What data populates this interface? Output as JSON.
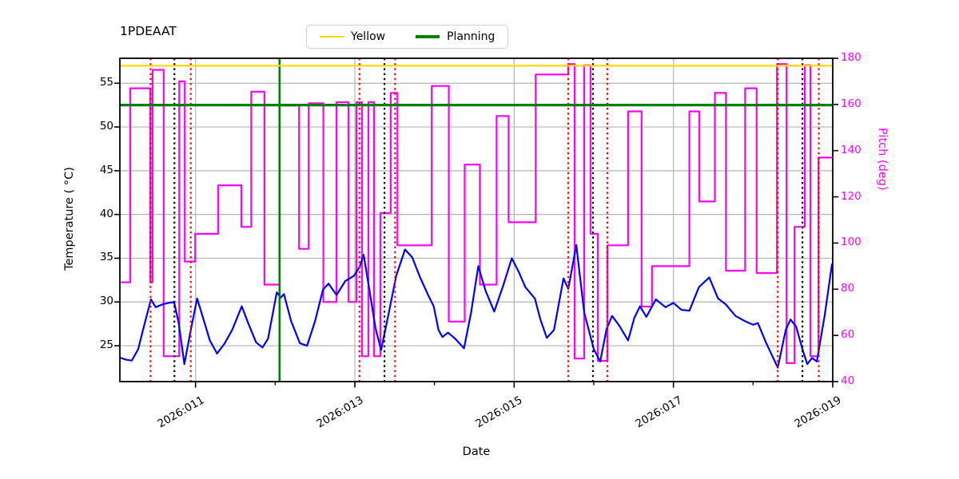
{
  "title": "1PDEAAT",
  "legend": {
    "items": [
      {
        "label": "Yellow",
        "color": "#FFD700",
        "thickness": 2.5
      },
      {
        "label": "Planning",
        "color": "#008000",
        "thickness": 3.5
      }
    ]
  },
  "axes": {
    "x": {
      "label": "Date",
      "range": [
        10.05,
        19.0
      ],
      "major_ticks": [
        {
          "day": 11,
          "label": "2026:011"
        },
        {
          "day": 13,
          "label": "2026:013"
        },
        {
          "day": 15,
          "label": "2026:015"
        },
        {
          "day": 17,
          "label": "2026:017"
        },
        {
          "day": 19,
          "label": "2026:019"
        }
      ],
      "minor_tick_days": [
        12,
        14,
        16,
        18
      ]
    },
    "y_left": {
      "label": "Temperature ( °C)",
      "range": [
        20.9,
        57.85
      ],
      "ticks": [
        25,
        30,
        35,
        40,
        45,
        50,
        55
      ],
      "color": "#000000"
    },
    "y_right": {
      "label": "Pitch (deg)",
      "range": [
        40,
        180
      ],
      "ticks": [
        40,
        60,
        80,
        100,
        120,
        140,
        160,
        180
      ],
      "color": "#FF00FF"
    }
  },
  "chart_data": {
    "type": "line",
    "title": "1PDEAAT",
    "xlabel": "Date",
    "x_unit": "2026 day-of-year",
    "grid": true,
    "legend_position": "top-center-outside",
    "series": [
      {
        "name": "1PDEAAT temperature",
        "axis": "left",
        "color": "#0000FF",
        "width": 2.2,
        "points": [
          [
            10.065,
            23.6
          ],
          [
            10.13,
            23.4
          ],
          [
            10.2,
            23.3
          ],
          [
            10.28,
            24.6
          ],
          [
            10.36,
            27.5
          ],
          [
            10.44,
            30.3
          ],
          [
            10.5,
            29.4
          ],
          [
            10.58,
            29.7
          ],
          [
            10.66,
            29.9
          ],
          [
            10.73,
            30.0
          ],
          [
            10.79,
            27.5
          ],
          [
            10.86,
            22.9
          ],
          [
            10.94,
            26.8
          ],
          [
            11.02,
            30.4
          ],
          [
            11.09,
            28.3
          ],
          [
            11.18,
            25.6
          ],
          [
            11.27,
            24.1
          ],
          [
            11.36,
            25.2
          ],
          [
            11.46,
            26.8
          ],
          [
            11.58,
            29.5
          ],
          [
            11.66,
            27.6
          ],
          [
            11.76,
            25.4
          ],
          [
            11.84,
            24.8
          ],
          [
            11.91,
            25.8
          ],
          [
            12.02,
            31.1
          ],
          [
            12.07,
            30.5
          ],
          [
            12.11,
            30.9
          ],
          [
            12.2,
            27.8
          ],
          [
            12.31,
            25.3
          ],
          [
            12.4,
            25.0
          ],
          [
            12.5,
            27.8
          ],
          [
            12.6,
            31.4
          ],
          [
            12.67,
            32.1
          ],
          [
            12.77,
            30.8
          ],
          [
            12.88,
            32.4
          ],
          [
            12.99,
            33.0
          ],
          [
            13.06,
            34.0
          ],
          [
            13.11,
            35.4
          ],
          [
            13.18,
            31.5
          ],
          [
            13.26,
            27.0
          ],
          [
            13.33,
            24.5
          ],
          [
            13.42,
            28.5
          ],
          [
            13.52,
            33.0
          ],
          [
            13.63,
            36.0
          ],
          [
            13.72,
            35.1
          ],
          [
            13.82,
            32.8
          ],
          [
            13.92,
            30.8
          ],
          [
            13.99,
            29.5
          ],
          [
            14.05,
            26.8
          ],
          [
            14.1,
            26.0
          ],
          [
            14.17,
            26.5
          ],
          [
            14.26,
            25.8
          ],
          [
            14.37,
            24.7
          ],
          [
            14.46,
            28.8
          ],
          [
            14.55,
            34.1
          ],
          [
            14.64,
            31.3
          ],
          [
            14.75,
            28.9
          ],
          [
            14.86,
            31.8
          ],
          [
            14.97,
            35.0
          ],
          [
            15.06,
            33.4
          ],
          [
            15.14,
            31.7
          ],
          [
            15.26,
            30.4
          ],
          [
            15.33,
            28.0
          ],
          [
            15.41,
            25.9
          ],
          [
            15.5,
            26.8
          ],
          [
            15.62,
            32.7
          ],
          [
            15.68,
            31.5
          ],
          [
            15.78,
            36.5
          ],
          [
            15.88,
            28.8
          ],
          [
            16.0,
            24.6
          ],
          [
            16.08,
            23.2
          ],
          [
            16.16,
            26.9
          ],
          [
            16.23,
            28.4
          ],
          [
            16.32,
            27.3
          ],
          [
            16.43,
            25.6
          ],
          [
            16.51,
            28.2
          ],
          [
            16.58,
            29.5
          ],
          [
            16.66,
            28.3
          ],
          [
            16.78,
            30.3
          ],
          [
            16.9,
            29.4
          ],
          [
            17.0,
            29.9
          ],
          [
            17.1,
            29.1
          ],
          [
            17.2,
            29.0
          ],
          [
            17.32,
            31.7
          ],
          [
            17.45,
            32.8
          ],
          [
            17.56,
            30.4
          ],
          [
            17.66,
            29.7
          ],
          [
            17.78,
            28.4
          ],
          [
            17.9,
            27.8
          ],
          [
            18.0,
            27.4
          ],
          [
            18.06,
            27.6
          ],
          [
            18.16,
            25.4
          ],
          [
            18.31,
            22.5
          ],
          [
            18.41,
            26.8
          ],
          [
            18.47,
            28.0
          ],
          [
            18.54,
            27.2
          ],
          [
            18.62,
            24.6
          ],
          [
            18.68,
            22.9
          ],
          [
            18.74,
            23.6
          ],
          [
            18.8,
            23.2
          ],
          [
            18.9,
            28.5
          ],
          [
            18.99,
            34.3
          ]
        ]
      },
      {
        "name": "Pitch",
        "axis": "right",
        "color": "#FF00FF",
        "width": 2.2,
        "style": "step",
        "segments": [
          [
            10.065,
            10.18,
            83
          ],
          [
            10.18,
            10.43,
            167
          ],
          [
            10.43,
            10.46,
            83
          ],
          [
            10.46,
            10.6,
            175
          ],
          [
            10.6,
            10.795,
            51
          ],
          [
            10.795,
            10.865,
            170
          ],
          [
            10.865,
            10.995,
            92
          ],
          [
            10.995,
            11.285,
            104
          ],
          [
            11.285,
            11.575,
            125
          ],
          [
            11.575,
            11.7,
            107
          ],
          [
            11.7,
            11.865,
            165.5
          ],
          [
            11.865,
            12.055,
            82
          ],
          [
            12.055,
            12.3,
            159.5
          ],
          [
            12.3,
            12.42,
            97.5
          ],
          [
            12.42,
            12.605,
            160.5
          ],
          [
            12.605,
            12.77,
            74.5
          ],
          [
            12.77,
            12.92,
            161
          ],
          [
            12.92,
            13.02,
            74.5
          ],
          [
            13.02,
            13.09,
            161
          ],
          [
            13.09,
            13.17,
            51
          ],
          [
            13.17,
            13.24,
            161
          ],
          [
            13.24,
            13.32,
            51
          ],
          [
            13.32,
            13.45,
            113
          ],
          [
            13.45,
            13.535,
            165
          ],
          [
            13.535,
            13.965,
            99
          ],
          [
            13.965,
            14.18,
            168
          ],
          [
            14.18,
            14.38,
            66
          ],
          [
            14.38,
            14.57,
            134
          ],
          [
            14.57,
            14.78,
            82
          ],
          [
            14.78,
            14.93,
            155
          ],
          [
            14.93,
            15.27,
            109
          ],
          [
            15.27,
            15.68,
            173
          ],
          [
            15.68,
            15.76,
            177.5
          ],
          [
            15.76,
            15.88,
            50
          ],
          [
            15.88,
            15.96,
            177
          ],
          [
            15.96,
            16.05,
            104
          ],
          [
            16.05,
            16.17,
            49
          ],
          [
            16.17,
            16.43,
            99
          ],
          [
            16.43,
            16.6,
            157
          ],
          [
            16.6,
            16.73,
            72.5
          ],
          [
            16.73,
            17.2,
            90
          ],
          [
            17.2,
            17.325,
            157
          ],
          [
            17.325,
            17.52,
            118
          ],
          [
            17.52,
            17.66,
            165
          ],
          [
            17.66,
            17.9,
            88
          ],
          [
            17.9,
            18.045,
            167
          ],
          [
            18.045,
            18.3,
            87
          ],
          [
            18.3,
            18.42,
            177.5
          ],
          [
            18.42,
            18.52,
            48
          ],
          [
            18.52,
            18.65,
            107
          ],
          [
            18.65,
            18.72,
            177
          ],
          [
            18.72,
            18.82,
            51
          ],
          [
            18.82,
            18.99,
            137
          ]
        ]
      }
    ],
    "limit_lines": [
      {
        "name": "Yellow",
        "value": 57.0,
        "axis": "left",
        "color": "#FFD700",
        "width": 2.2
      },
      {
        "name": "Planning",
        "value": 52.5,
        "axis": "left",
        "color": "#008000",
        "width": 3.2
      }
    ],
    "vlines": [
      {
        "day": 12.055,
        "color": "#008000",
        "style": "solid",
        "width": 2.6
      },
      {
        "day": 10.435,
        "color": "#FF0000",
        "style": "dotted",
        "width": 2.2
      },
      {
        "day": 10.94,
        "color": "#FF0000",
        "style": "dotted",
        "width": 2.2
      },
      {
        "day": 13.058,
        "color": "#FF0000",
        "style": "dotted",
        "width": 2.2
      },
      {
        "day": 13.505,
        "color": "#FF0000",
        "style": "dotted",
        "width": 2.2
      },
      {
        "day": 15.68,
        "color": "#FF0000",
        "style": "dotted",
        "width": 2.2
      },
      {
        "day": 16.17,
        "color": "#FF0000",
        "style": "dotted",
        "width": 2.2
      },
      {
        "day": 18.31,
        "color": "#FF0000",
        "style": "dotted",
        "width": 2.2
      },
      {
        "day": 18.825,
        "color": "#FF0000",
        "style": "dotted",
        "width": 2.2
      },
      {
        "day": 10.735,
        "color": "#000000",
        "style": "dotted",
        "width": 2.2
      },
      {
        "day": 13.372,
        "color": "#000000",
        "style": "dotted",
        "width": 2.2
      },
      {
        "day": 15.99,
        "color": "#000000",
        "style": "dotted",
        "width": 2.2
      },
      {
        "day": 18.62,
        "color": "#000000",
        "style": "dotted",
        "width": 2.2
      }
    ]
  },
  "colors": {
    "grid": "#b4b4b4",
    "spine": "#000000",
    "background": "#ffffff"
  }
}
